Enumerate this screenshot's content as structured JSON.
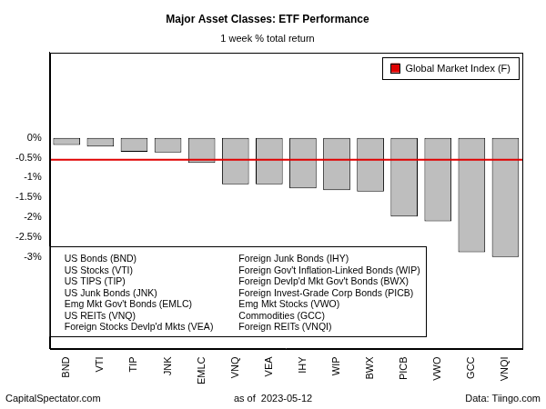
{
  "chart_data": {
    "type": "bar",
    "title": "Major Asset Classes: ETF Performance",
    "subtitle": "1 week % total return",
    "categories": [
      "BND",
      "VTI",
      "TIP",
      "JNK",
      "EMLC",
      "VNQ",
      "VEA",
      "IHY",
      "WIP",
      "BWX",
      "PICB",
      "VWO",
      "GCC",
      "VNQI"
    ],
    "values": [
      -0.18,
      -0.22,
      -0.35,
      -0.37,
      -0.63,
      -1.17,
      -1.17,
      -1.27,
      -1.32,
      -1.35,
      -1.98,
      -2.1,
      -2.88,
      -3.0
    ],
    "color": "#bebebe",
    "reference_line": {
      "name": "Global Market Index (F)",
      "value": -0.55,
      "color": "#e00000"
    },
    "legend": "top-right",
    "annotations": [
      "US Bonds (BND)",
      "US Stocks (VTI)",
      "US TIPS (TIP)",
      "US Junk Bonds (JNK)",
      "Emg Mkt Gov't Bonds (EMLC)",
      "US REITs (VNQ)",
      "Foreign Stocks Devlp'd Mkts (VEA)",
      "Foreign Junk Bonds (IHY)",
      "Foreign Gov't Inflation-Linked Bonds (WIP)",
      "Foreign Devlp'd Mkt Gov't Bonds (BWX)",
      "Foreign Invest-Grade Corp Bonds (PICB)",
      "Emg Mkt Stocks (VWO)",
      "Commodities (GCC)",
      "Foreign REITs (VNQI)"
    ],
    "footer": [
      "CapitalSpectator.com",
      "as of  2023-05-12",
      "Data: Tiingo.com"
    ],
    "ylim": [
      -5.3,
      2.15
    ],
    "yticks": [
      {
        "value": 0,
        "label": "0%"
      },
      {
        "value": -0.5,
        "label": "-0.5%"
      },
      {
        "value": -1,
        "label": "-1%"
      },
      {
        "value": -1.5,
        "label": "-1.5%"
      },
      {
        "value": -2,
        "label": "-2%"
      },
      {
        "value": -2.5,
        "label": "-2.5%"
      },
      {
        "value": -3,
        "label": "-3%"
      }
    ],
    "grid": false
  }
}
